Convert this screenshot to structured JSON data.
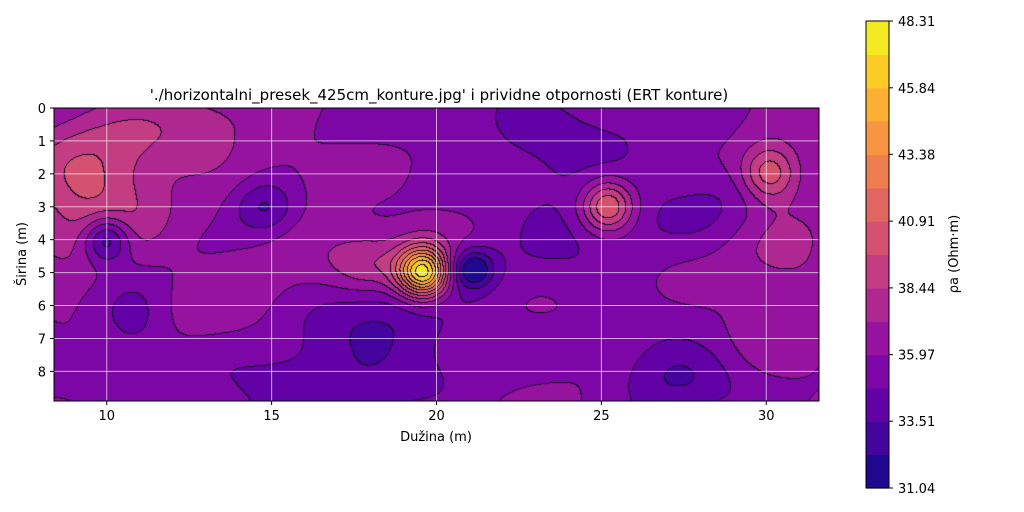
{
  "chart_data": {
    "type": "heatmap",
    "title": "'./horizontalni_presek_425cm_konture.jpg' i prividne otpornosti (ERT konture)",
    "xlabel": "Dužina (m)",
    "ylabel": "Širina (m)",
    "xlim": [
      8.4,
      31.6
    ],
    "ylim": [
      8.9,
      0
    ],
    "x_ticks": [
      10,
      15,
      20,
      25,
      30
    ],
    "y_ticks": [
      0,
      1,
      2,
      3,
      4,
      5,
      6,
      7,
      8
    ],
    "grid": true,
    "colorbar": {
      "label": "ρa (Ohm·m)",
      "min": 31.04,
      "max": 48.31,
      "ticks": [
        "31.04",
        "33.51",
        "35.97",
        "38.44",
        "40.91",
        "43.38",
        "45.84",
        "48.31"
      ],
      "levels": 14,
      "colormap": "plasma"
    },
    "background_value": 36.0,
    "features": [
      {
        "x": 19.6,
        "y": 5.0,
        "sx": 0.55,
        "sy": 0.55,
        "value": 48.3
      },
      {
        "x": 10.0,
        "y": 4.0,
        "sx": 0.5,
        "sy": 0.5,
        "value": 31.0
      },
      {
        "x": 21.1,
        "y": 4.9,
        "sx": 0.45,
        "sy": 0.4,
        "value": 31.3
      },
      {
        "x": 25.2,
        "y": 3.0,
        "sx": 0.55,
        "sy": 0.55,
        "value": 41.8
      },
      {
        "x": 30.1,
        "y": 2.0,
        "sx": 0.6,
        "sy": 0.6,
        "value": 40.8
      },
      {
        "x": 9.5,
        "y": 2.5,
        "sx": 1.4,
        "sy": 1.4,
        "value": 40.0
      },
      {
        "x": 14.8,
        "y": 3.0,
        "sx": 0.7,
        "sy": 0.6,
        "value": 32.8
      },
      {
        "x": 18.3,
        "y": 6.7,
        "sx": 2.0,
        "sy": 1.3,
        "value": 33.5
      },
      {
        "x": 24.0,
        "y": 3.0,
        "sx": 2.0,
        "sy": 1.8,
        "value": 34.5
      },
      {
        "x": 27.3,
        "y": 8.2,
        "sx": 1.3,
        "sy": 0.8,
        "value": 33.2
      },
      {
        "x": 12.5,
        "y": 0.8,
        "sx": 2.0,
        "sy": 1.0,
        "value": 37.8
      },
      {
        "x": 16.5,
        "y": 4.3,
        "sx": 2.0,
        "sy": 1.2,
        "value": 37.0
      },
      {
        "x": 30.6,
        "y": 4.8,
        "sx": 1.2,
        "sy": 1.8,
        "value": 37.5
      },
      {
        "x": 22.0,
        "y": 0.3,
        "sx": 3.0,
        "sy": 0.8,
        "value": 34.8
      },
      {
        "x": 10.8,
        "y": 6.5,
        "sx": 0.8,
        "sy": 0.8,
        "value": 34.0
      },
      {
        "x": 18.0,
        "y": 4.8,
        "sx": 0.8,
        "sy": 0.6,
        "value": 38.0
      },
      {
        "x": 28.5,
        "y": 2.8,
        "sx": 1.5,
        "sy": 1.0,
        "value": 34.8
      },
      {
        "x": 15.5,
        "y": 8.5,
        "sx": 2.5,
        "sy": 0.8,
        "value": 34.2
      },
      {
        "x": 13.5,
        "y": 6.5,
        "sx": 1.5,
        "sy": 1.0,
        "value": 36.6
      }
    ]
  }
}
